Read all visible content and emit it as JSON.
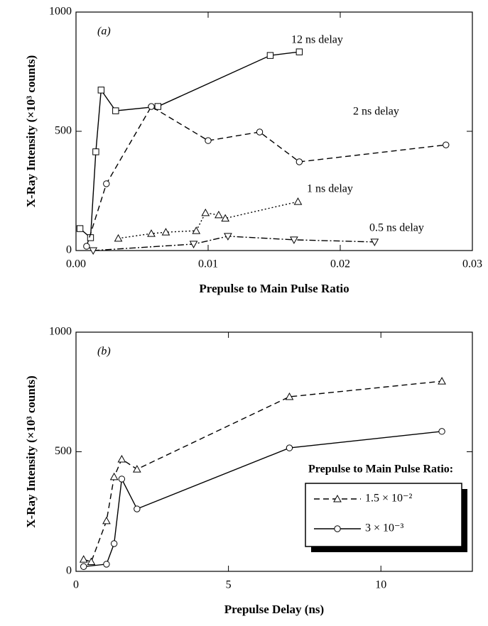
{
  "chart_data": [
    {
      "type": "line",
      "panel_label": "(a)",
      "x_label": "Prepulse to Main Pulse Ratio",
      "y_label": "X-Ray Intensity (×10³ counts)",
      "xlim": [
        0,
        0.03
      ],
      "xticks": [
        {
          "value": 0,
          "label": "0.00"
        },
        0.01,
        0.02,
        0.03
      ],
      "ylim": [
        0,
        1000
      ],
      "yticks": [
        0,
        500,
        1000
      ],
      "series": [
        {
          "name": "12 ns delay",
          "color": "#000",
          "marker": "square",
          "linestyle": "solid",
          "x": [
            0.0003,
            0.0011,
            0.0015,
            0.0019,
            0.003,
            0.0062,
            0.0147,
            0.0169
          ],
          "values": [
            92,
            54,
            414,
            673,
            586,
            604,
            818,
            833
          ]
        },
        {
          "name": "2 ns delay",
          "color": "#000",
          "marker": "circle",
          "linestyle": "dashed",
          "x": [
            0.0008,
            0.0023,
            0.0057,
            0.01,
            0.0139,
            0.0169,
            0.028
          ],
          "values": [
            18,
            280,
            604,
            461,
            497,
            372,
            443
          ]
        },
        {
          "name": "1 ns delay",
          "color": "#000",
          "marker": "triangle-up",
          "linestyle": "dotted",
          "x": [
            0.0032,
            0.0057,
            0.0068,
            0.0091,
            0.0098,
            0.0108,
            0.0113,
            0.0168
          ],
          "values": [
            51,
            71,
            77,
            83,
            158,
            149,
            135,
            205
          ]
        },
        {
          "name": "0.5 ns delay",
          "color": "#000",
          "marker": "triangle-down",
          "linestyle": "dashdot",
          "x": [
            0.0013,
            0.0089,
            0.0115,
            0.0165,
            0.0226
          ],
          "values": [
            0,
            27,
            60,
            45,
            36
          ]
        }
      ]
    },
    {
      "type": "line",
      "panel_label": "(b)",
      "x_label": "Prepulse Delay (ns)",
      "y_label": "X-Ray Intensity (×10³ counts)",
      "xlim": [
        0,
        13
      ],
      "xticks": [
        0,
        5,
        10
      ],
      "ylim": [
        0,
        1000
      ],
      "yticks": [
        0,
        500,
        1000
      ],
      "legend_title": "Prepulse to Main Pulse Ratio:",
      "legend": "lower right",
      "series": [
        {
          "name": "1.5 × 10⁻²",
          "color": "#000",
          "marker": "triangle-up",
          "linestyle": "dashed",
          "x": [
            0.25,
            0.5,
            1.0,
            1.25,
            1.5,
            2.0,
            7.0,
            12.0
          ],
          "values": [
            50,
            40,
            211,
            395,
            469,
            427,
            730,
            795
          ]
        },
        {
          "name": "3 × 10⁻³",
          "color": "#000",
          "marker": "circle",
          "linestyle": "solid",
          "x": [
            0.25,
            1.0,
            1.25,
            1.5,
            2.0,
            7.0,
            12.0
          ],
          "values": [
            20,
            30,
            116,
            386,
            261,
            516,
            585
          ]
        }
      ]
    }
  ]
}
